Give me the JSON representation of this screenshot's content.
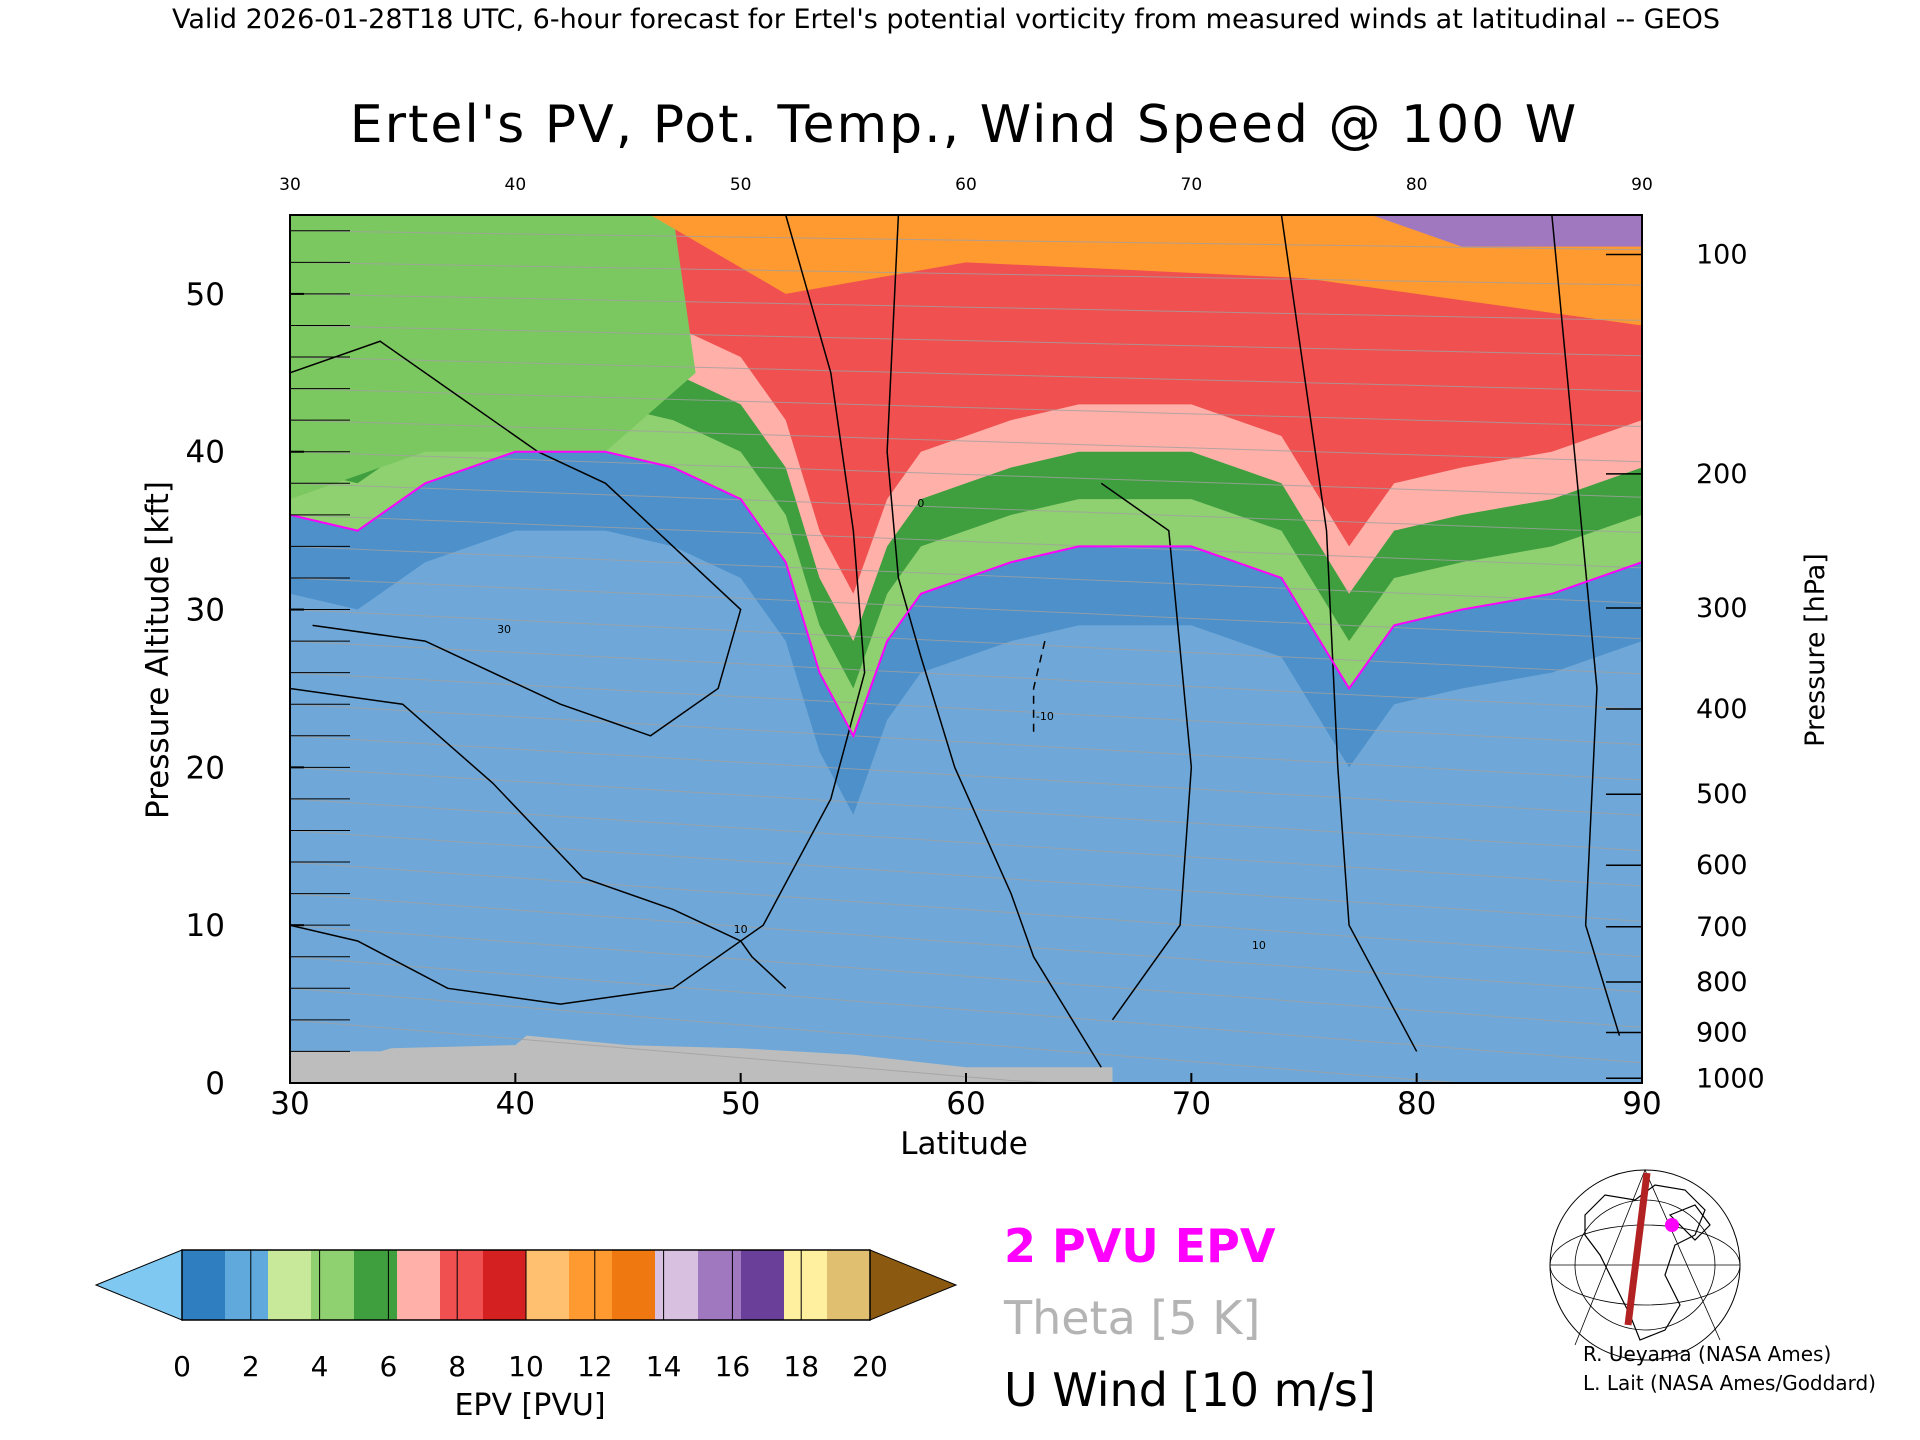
{
  "header": {
    "valid_line": "Valid 2026-01-28T18 UTC, 6-hour forecast for Ertel's potential vorticity from measured winds at latitudinal -- GEOS"
  },
  "chart_data": {
    "type": "heatmap",
    "title": "Ertel's PV, Pot. Temp., Wind Speed @ 100 W",
    "xlabel": "Latitude",
    "ylabel": "Pressure Altitude [kft]",
    "y2label": "Pressure [hPa]",
    "xlim": [
      30,
      90
    ],
    "ylim": [
      0,
      55
    ],
    "x_ticks": [
      "30",
      "40",
      "50",
      "60",
      "70",
      "80",
      "90"
    ],
    "y_ticks": [
      "0",
      "10",
      "20",
      "30",
      "40",
      "50"
    ],
    "pressure_ticks": [
      {
        "label": "100",
        "kft": 52.5
      },
      {
        "label": "200",
        "kft": 38.6
      },
      {
        "label": "300",
        "kft": 30.1
      },
      {
        "label": "400",
        "kft": 23.7
      },
      {
        "label": "500",
        "kft": 18.3
      },
      {
        "label": "600",
        "kft": 13.8
      },
      {
        "label": "700",
        "kft": 9.9
      },
      {
        "label": "800",
        "kft": 6.4
      },
      {
        "label": "900",
        "kft": 3.2
      },
      {
        "label": "1000",
        "kft": 0.3
      }
    ],
    "tropopause_2pvu_kft": [
      {
        "lat": 30,
        "kft": 36
      },
      {
        "lat": 33,
        "kft": 35
      },
      {
        "lat": 36,
        "kft": 38
      },
      {
        "lat": 40,
        "kft": 40
      },
      {
        "lat": 44,
        "kft": 40
      },
      {
        "lat": 47,
        "kft": 39
      },
      {
        "lat": 50,
        "kft": 37
      },
      {
        "lat": 52,
        "kft": 33
      },
      {
        "lat": 53.5,
        "kft": 26
      },
      {
        "lat": 55,
        "kft": 22
      },
      {
        "lat": 56.5,
        "kft": 28
      },
      {
        "lat": 58,
        "kft": 31
      },
      {
        "lat": 60,
        "kft": 32
      },
      {
        "lat": 62,
        "kft": 33
      },
      {
        "lat": 65,
        "kft": 34
      },
      {
        "lat": 70,
        "kft": 34
      },
      {
        "lat": 74,
        "kft": 32
      },
      {
        "lat": 77,
        "kft": 25
      },
      {
        "lat": 79,
        "kft": 29
      },
      {
        "lat": 82,
        "kft": 30
      },
      {
        "lat": 86,
        "kft": 31
      },
      {
        "lat": 90,
        "kft": 33
      }
    ],
    "wind_contour_labels": [
      "30",
      "10",
      "0",
      "-10"
    ],
    "legend": [
      {
        "label": "2 PVU EPV",
        "color": "#ff00ff"
      },
      {
        "label": "Theta [5 K]",
        "color": "#b0b0b0"
      },
      {
        "label": "U Wind [10 m/s]",
        "color": "#000000"
      }
    ]
  },
  "colorbar": {
    "label": "EPV [PVU]",
    "ticks": [
      "0",
      "2",
      "4",
      "6",
      "8",
      "10",
      "12",
      "14",
      "16",
      "18",
      "20"
    ],
    "colors": [
      "#7ec8f2",
      "#2f7fc0",
      "#5fa9dc",
      "#c8e89a",
      "#8fd070",
      "#3f9f3f",
      "#ffb0a8",
      "#f05050",
      "#d42020",
      "#ffc070",
      "#ff9a30",
      "#f07810",
      "#d8c0e0",
      "#a078c0",
      "#6a3f9a",
      "#fff0a0",
      "#e0c070",
      "#8b5a10"
    ]
  },
  "credits": {
    "line1": "R. Ueyama (NASA Ames)",
    "line2": "L. Lait (NASA Ames/Goddard)"
  }
}
